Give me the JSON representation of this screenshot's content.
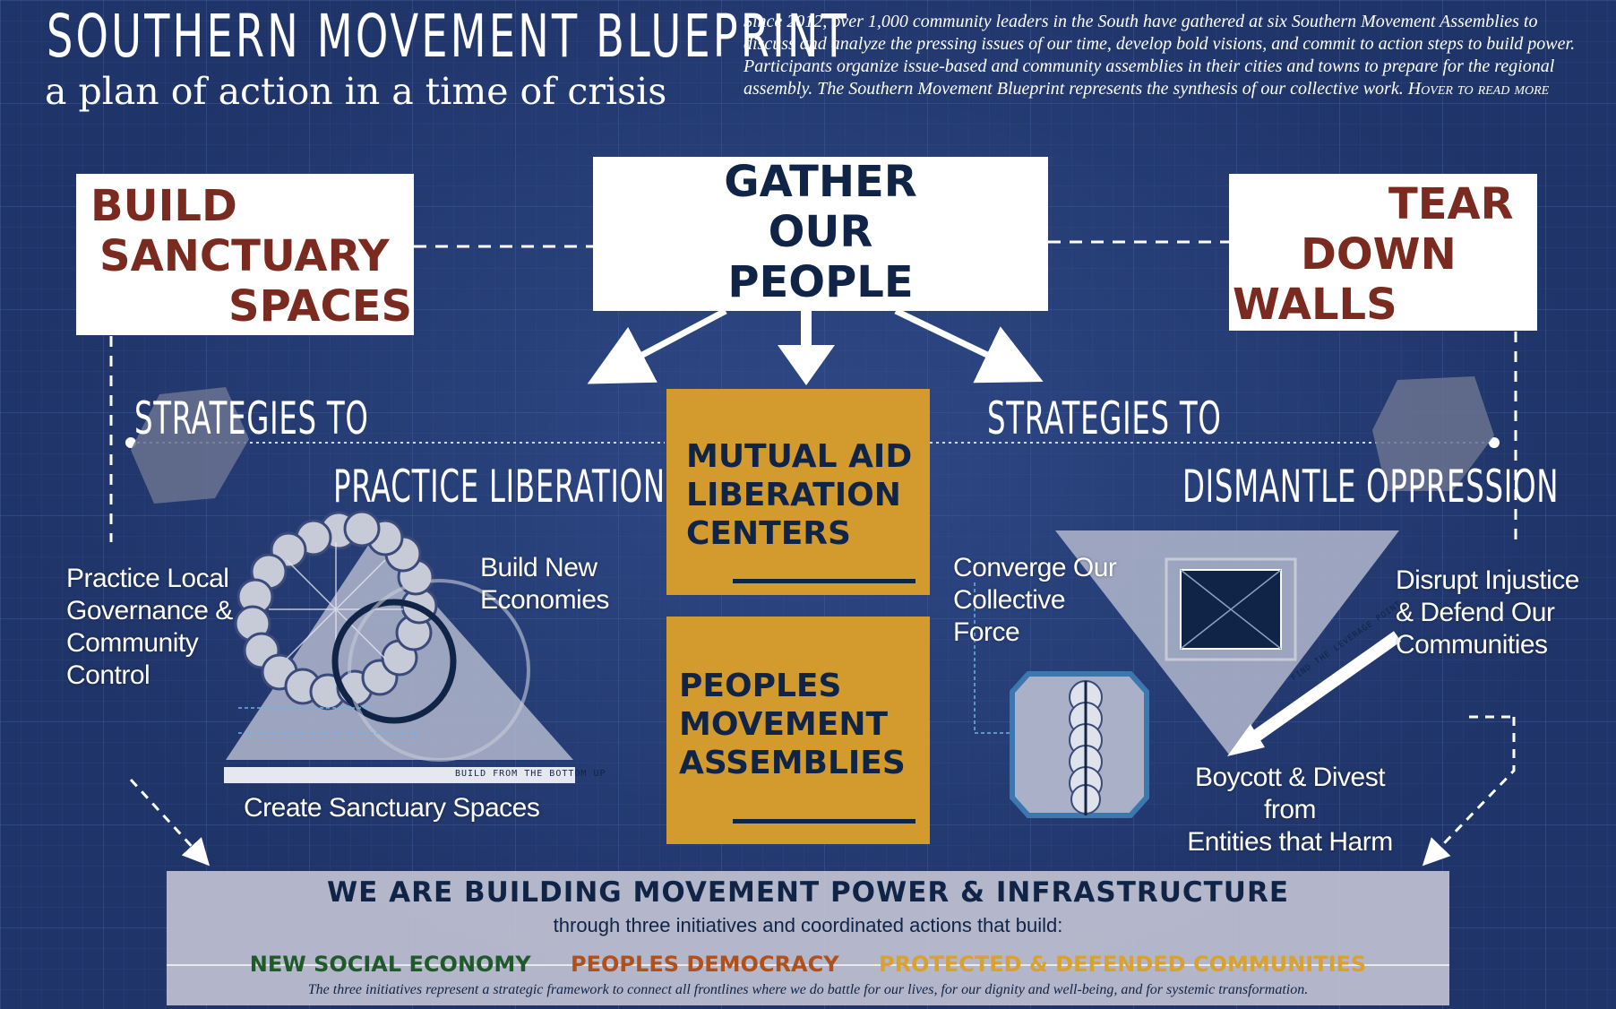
{
  "header": {
    "title": "SOUTHERN MOVEMENT BLUEPRINT",
    "subtitle": "a plan of action in a time of crisis",
    "intro": "Since 2012, over 1,000 community leaders in the South have gathered at six Southern Movement Assemblies to discuss and analyze the pressing issues of our time, develop bold visions, and commit to action steps to build power. Participants organize issue-based and community assemblies in their cities and towns to prepare for the regional assembly. The Southern Movement Blueprint represents the synthesis of our collective work.",
    "hover_hint": "Hover to read more"
  },
  "boxes": {
    "build": [
      "BUILD",
      "SANCTUARY",
      "SPACES"
    ],
    "gather": [
      "GATHER",
      "OUR",
      "PEOPLE"
    ],
    "tear": [
      "TEAR",
      "DOWN",
      "WALLS"
    ]
  },
  "center": {
    "mutual_aid": [
      "MUTUAL AID",
      "LIBERATION",
      "CENTERS"
    ],
    "assemblies": [
      "PEOPLES",
      "MOVEMENT",
      "ASSEMBLIES"
    ]
  },
  "left": {
    "strategies_to": "STRATEGIES TO",
    "heading": "PRACTICE LIBERATION",
    "label_governance": [
      "Practice Local",
      "Governance &",
      "Community",
      "Control"
    ],
    "label_economies": [
      "Build New",
      "Economies"
    ],
    "label_sanctuary": "Create Sanctuary Spaces",
    "bottom_up": "BUILD FROM THE BOTTOM UP"
  },
  "right": {
    "strategies_to": "STRATEGIES TO",
    "heading": "DISMANTLE OPPRESSION",
    "label_converge": [
      "Converge Our",
      "Collective",
      "Force"
    ],
    "label_disrupt": [
      "Disrupt Injustice",
      "& Defend Our",
      "Communities"
    ],
    "label_boycott": [
      "Boycott & Divest",
      "from",
      "Entities that Harm"
    ],
    "leverage": "FIND THE LEVERAGE POINT"
  },
  "bottom": {
    "heading": "WE ARE BUILDING MOVEMENT POWER & INFRASTRUCTURE",
    "subheading": "through three initiatives and coordinated actions that build:",
    "initiatives": [
      {
        "label": "NEW SOCIAL ECONOMY",
        "color": "#1f5a2a"
      },
      {
        "label": "PEOPLES DEMOCRACY",
        "color": "#b0501c"
      },
      {
        "label": "PROTECTED & DEFENDED COMMUNITIES",
        "color": "#d9a22c"
      }
    ],
    "footnote": "The three initiatives represent a strategic framework to connect all frontlines where we do battle for our lives, for our dignity and well-being, and for systemic transformation."
  },
  "colors": {
    "background": "#1f3468",
    "maroon": "#7b2a1f",
    "navy": "#102447",
    "orange": "#d39b2e"
  }
}
